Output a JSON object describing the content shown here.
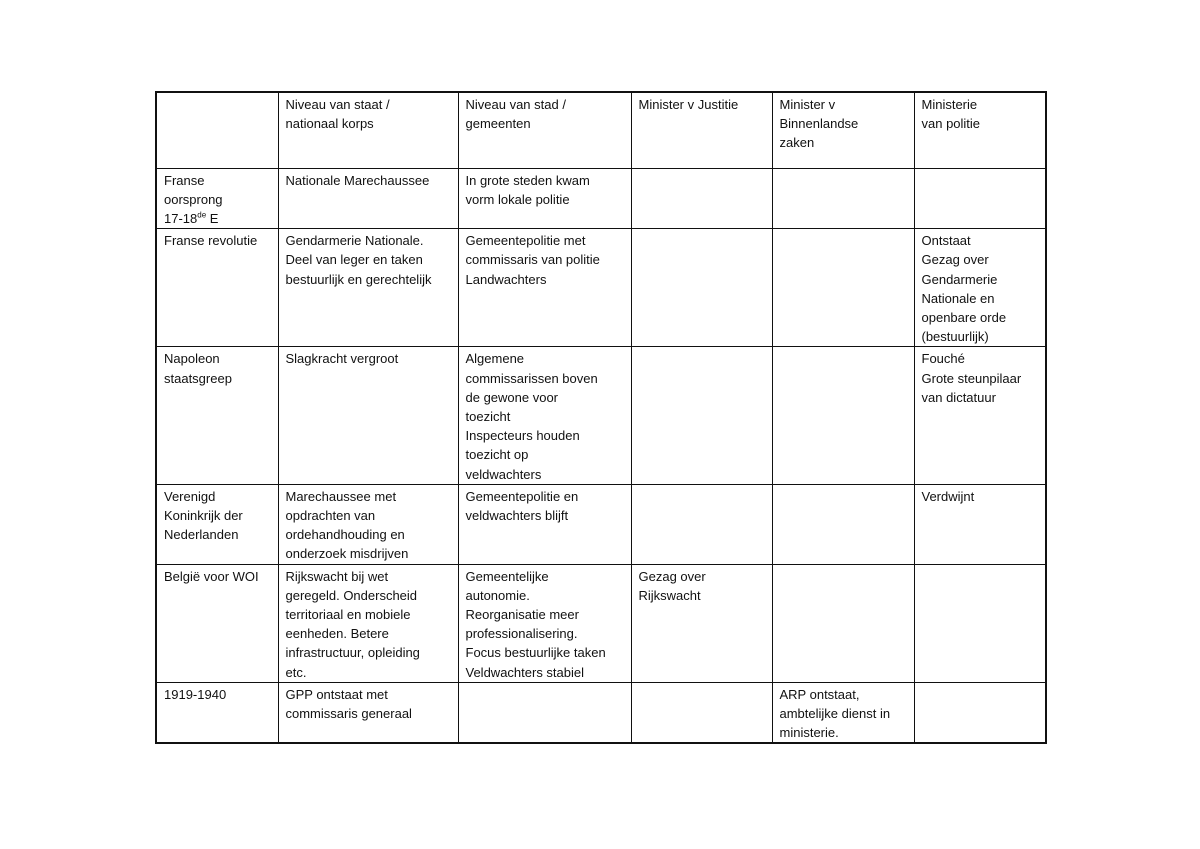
{
  "table": {
    "headers": [
      "",
      "Niveau van staat /\nnationaal korps",
      "Niveau van stad /\ngemeenten",
      "Minister v Justitie",
      "Minister v\nBinnenlandse\nzaken",
      "Ministerie\n van politie"
    ],
    "rows": [
      {
        "period": "Franse\noorsprong\n17-18",
        "period_sup": "de",
        "period_suffix": " E",
        "cells": [
          "Nationale Marechaussee",
          "In grote steden kwam\nvorm lokale politie",
          "",
          "",
          ""
        ]
      },
      {
        "period": "Franse revolutie",
        "cells": [
          "Gendarmerie Nationale.\nDeel van leger en taken\nbestuurlijk en gerechtelijk",
          "Gemeentepolitie met\ncommissaris van politie\nLandwachters",
          "",
          "",
          "Ontstaat\nGezag over\nGendarmerie\nNationale en\nopenbare orde\n(bestuurlijk)"
        ]
      },
      {
        "period": "Napoleon\nstaatsgreep",
        "cells": [
          "Slagkracht vergroot",
          "Algemene\ncommissarissen boven\nde gewone voor\ntoezicht\nInspecteurs houden\ntoezicht op\nveldwachters",
          "",
          "",
          "Fouché\nGrote steunpilaar\nvan dictatuur"
        ]
      },
      {
        "period": "Verenigd\nKoninkrijk der\nNederlanden",
        "cells": [
          "Marechaussee met\nopdrachten van\nordehandhouding en\nonderzoek misdrijven",
          "Gemeentepolitie en\nveldwachters blijft",
          "",
          "",
          "Verdwijnt"
        ]
      },
      {
        "period": "België voor WOI",
        "cells": [
          "Rijkswacht bij wet\ngeregeld. Onderscheid\nterritoriaal en mobiele\neenheden. Betere\ninfrastructuur, opleiding\netc.",
          "Gemeentelijke\nautonomie.\nReorganisatie meer\nprofessionalisering.\nFocus bestuurlijke taken\nVeldwachters stabiel",
          "Gezag over\nRijkswacht",
          "",
          ""
        ]
      },
      {
        "period": "1919-1940",
        "cells": [
          "GPP ontstaat met\ncommissaris generaal",
          "",
          "",
          "ARP ontstaat,\nambtelijke dienst in\nministerie.",
          ""
        ]
      }
    ]
  }
}
